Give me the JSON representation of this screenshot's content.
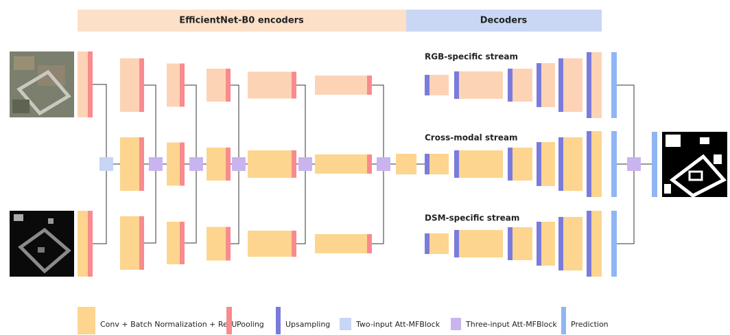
{
  "header": {
    "encoder_title": "EfficientNet-B0 encoders",
    "decoder_title": "Decoders"
  },
  "streams": [
    "RGB-specific stream",
    "Cross-modal stream",
    "DSM-specific stream"
  ],
  "legend": [
    "Conv + Batch Normalization + ReLU",
    "Pooling",
    "Upsampling",
    "Two-input Att-MFBlock",
    "Three-input Att-MFBlock",
    "Prediction"
  ]
}
